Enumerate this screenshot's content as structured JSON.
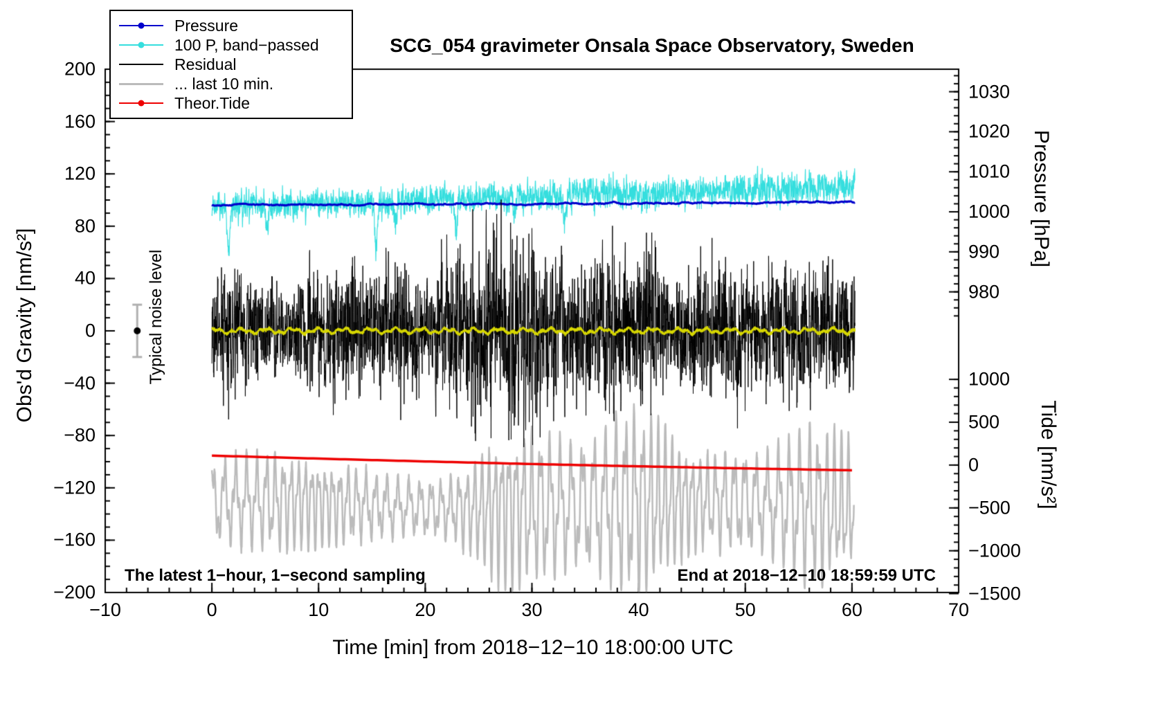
{
  "chart_data": {
    "type": "line",
    "title": "SCG_054 gravimeter Onsala Space Observatory, Sweden",
    "xlabel": "Time [min] from 2018−12−10 18:00:00 UTC",
    "ylabel": "Obs'd Gravity [nm/s²]",
    "xlim": [
      -10,
      70
    ],
    "ylim": [
      -200,
      200
    ],
    "time_span_min": [
      0,
      60.3
    ],
    "x_axis": {
      "tick_values": [
        -10,
        0,
        10,
        20,
        30,
        40,
        50,
        60,
        70
      ],
      "tick_labels": [
        "−10",
        "0",
        "10",
        "20",
        "30",
        "40",
        "50",
        "60",
        "70"
      ],
      "minor_from": -10,
      "minor_to": 70,
      "minor_step": 2
    },
    "left_axis": {
      "tick_values": [
        -200,
        -160,
        -120,
        -80,
        -40,
        0,
        40,
        80,
        120,
        160,
        200
      ],
      "tick_labels": [
        "−200",
        "−160",
        "−120",
        "−80",
        "−40",
        "0",
        "40",
        "80",
        "120",
        "160",
        "200"
      ],
      "minor_step": 10
    },
    "pressure_axis": {
      "label": "Pressure [hPa]",
      "tick_values": [
        1030,
        1020,
        1010,
        1000,
        990,
        980
      ],
      "tick_labels": [
        "1030",
        "1020",
        "1010",
        "1000",
        "990",
        "980"
      ],
      "minor_from": 974,
      "minor_to": 1034,
      "minor_step": 2,
      "gravity_at_1000": 91,
      "gravity_per_hpa": 3.06
    },
    "tide_axis": {
      "label": "Tide [nm/s²]",
      "tick_values": [
        1000,
        500,
        0,
        -500,
        -1000,
        -1500
      ],
      "tick_labels": [
        "1000",
        "500",
        "0",
        "−500",
        "−1000",
        "−1500"
      ],
      "minor_from": -1500,
      "minor_to": 1000,
      "minor_step": 100,
      "gravity_at_0": -102.6,
      "gravity_per_unit": 0.0655
    },
    "noise_bar": {
      "x": -7,
      "center": 0,
      "half_range": 20,
      "bar_color": "#b0b0b0",
      "dot_color": "#000000"
    },
    "series": [
      {
        "key": "pressure",
        "name": "Pressure",
        "color": "#0000cc",
        "axis": "pressure",
        "start_hpa": 1001.7,
        "end_hpa": 1002.4,
        "linewidth": 3
      },
      {
        "key": "bandpassed",
        "name": "100 P, band−passed",
        "color": "#35dede",
        "axis": "gravity",
        "center_start": 95,
        "center_end": 110,
        "amp_start": 6,
        "amp_end": 7.5,
        "dips": [
          [
            1.6,
            -34
          ],
          [
            5.2,
            -16
          ],
          [
            15.4,
            -40
          ],
          [
            17.2,
            -18
          ],
          [
            22.9,
            -26
          ],
          [
            28.4,
            -16
          ],
          [
            33.1,
            -20
          ]
        ],
        "linewidth": 1.2
      },
      {
        "key": "residual",
        "name": "Residual",
        "color": "#000000",
        "axis": "gravity",
        "amp_base": 24,
        "amp_mod": 8,
        "bursts": [
          [
            1.5,
            14
          ],
          [
            3,
            10
          ],
          [
            5,
            12
          ],
          [
            8,
            10
          ],
          [
            10,
            12
          ],
          [
            13,
            16
          ],
          [
            16,
            20
          ],
          [
            18,
            24
          ],
          [
            21,
            16
          ],
          [
            23,
            20
          ],
          [
            25,
            22
          ],
          [
            27,
            30
          ],
          [
            29,
            36
          ],
          [
            31,
            26
          ],
          [
            33,
            22
          ],
          [
            36,
            14
          ],
          [
            38,
            18
          ],
          [
            41,
            38
          ],
          [
            44,
            14
          ],
          [
            46,
            18
          ],
          [
            48,
            12
          ],
          [
            50,
            14
          ],
          [
            53,
            16
          ],
          [
            55,
            20
          ],
          [
            57,
            16
          ],
          [
            59,
            12
          ]
        ],
        "linewidth": 1
      },
      {
        "key": "last10",
        "name": "... last 10 min.",
        "color": "#bbbbbb",
        "axis": "gravity",
        "center": -133,
        "period": 0.85,
        "amp_base": 26,
        "amp_mod": 9,
        "amp_bumps": [
          [
            27,
            24
          ],
          [
            31,
            14
          ],
          [
            39,
            24
          ],
          [
            42,
            16
          ],
          [
            49,
            10
          ],
          [
            55,
            20
          ],
          [
            58,
            12
          ]
        ],
        "phase1": 0.8,
        "phase2": 2.1,
        "t_start": 0,
        "t_end": 60.2,
        "linewidth": 2.5
      },
      {
        "key": "tide",
        "name": "Theor.Tide",
        "color": "#ee0000",
        "axis": "tide",
        "start": 110,
        "end": -62,
        "curve": -12,
        "linewidth": 3.5
      },
      {
        "key": "smoothed",
        "name": "smoothed-residual",
        "color": "#d6d600",
        "axis": "gravity",
        "amplitude": 2.5,
        "linewidth": 2.2
      }
    ]
  },
  "legend": {
    "items": [
      {
        "key": "pressure",
        "label": "Pressure",
        "color": "#0000cc",
        "lw": 2.5,
        "dot": true
      },
      {
        "key": "bandpassed",
        "label": "100 P, band−passed",
        "color": "#35dede",
        "lw": 2.5,
        "dot": true
      },
      {
        "key": "residual",
        "label": "Residual",
        "color": "#000000",
        "lw": 2.5,
        "dot": false
      },
      {
        "key": "last10",
        "label": "... last 10 min.",
        "color": "#bbbbbb",
        "lw": 3,
        "dot": false
      },
      {
        "key": "tide",
        "label": "Theor.Tide",
        "color": "#ee0000",
        "lw": 2.5,
        "dot": true
      }
    ]
  },
  "annotations": {
    "noise_label": "Typical noise level",
    "sampling_note": "The latest 1−hour, 1−second sampling",
    "end_note": "End at 2018−12−10 18:59:59 UTC"
  }
}
